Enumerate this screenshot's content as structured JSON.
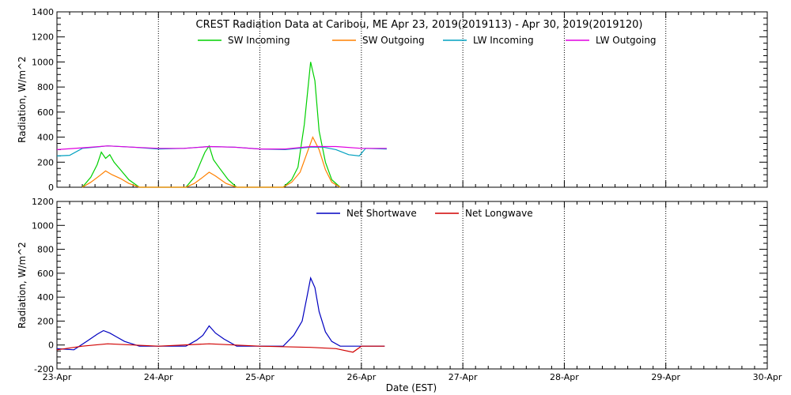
{
  "figure_title": "CREST Radiation Data at Caribou, ME   Apr 23, 2019(2019113) - Apr 30, 2019(2019120)",
  "xlabel": "Date (EST)",
  "chart_data": [
    {
      "type": "line",
      "ylabel": "Radiation, W/m^2",
      "ylim": [
        0,
        1400
      ],
      "yticks": [
        0,
        200,
        400,
        600,
        800,
        1000,
        1200,
        1400
      ],
      "xlim": [
        "2019-04-23",
        "2019-04-30"
      ],
      "xtick_labels": [
        "23-Apr",
        "24-Apr",
        "25-Apr",
        "26-Apr",
        "27-Apr",
        "28-Apr",
        "29-Apr",
        "30-Apr"
      ],
      "grid": true,
      "legend_position": "top",
      "series": [
        {
          "name": "SW Incoming",
          "color": "#00d000",
          "x": [
            "2019-04-23T06:00",
            "2019-04-23T08:00",
            "2019-04-23T09:30",
            "2019-04-23T10:30",
            "2019-04-23T11:30",
            "2019-04-23T12:30",
            "2019-04-23T13:30",
            "2019-04-23T15:00",
            "2019-04-23T17:00",
            "2019-04-23T19:30",
            "2019-04-24T06:30",
            "2019-04-24T08:30",
            "2019-04-24T10:00",
            "2019-04-24T11:00",
            "2019-04-24T12:00",
            "2019-04-24T13:00",
            "2019-04-24T14:30",
            "2019-04-24T16:30",
            "2019-04-24T18:30",
            "2019-04-25T05:30",
            "2019-04-25T07:30",
            "2019-04-25T09:00",
            "2019-04-25T10:30",
            "2019-04-25T12:00",
            "2019-04-25T13:00",
            "2019-04-25T14:00",
            "2019-04-25T15:30",
            "2019-04-25T17:00",
            "2019-04-25T19:00"
          ],
          "y": [
            0,
            80,
            180,
            280,
            230,
            260,
            200,
            140,
            60,
            0,
            0,
            80,
            200,
            280,
            330,
            220,
            150,
            60,
            0,
            0,
            60,
            160,
            500,
            1000,
            850,
            450,
            200,
            60,
            0
          ]
        },
        {
          "name": "SW Outgoing",
          "color": "#ff8000",
          "x": [
            "2019-04-23T06:00",
            "2019-04-23T08:00",
            "2019-04-23T10:00",
            "2019-04-23T11:30",
            "2019-04-23T13:00",
            "2019-04-23T15:00",
            "2019-04-23T17:00",
            "2019-04-23T19:30",
            "2019-04-24T06:30",
            "2019-04-24T08:30",
            "2019-04-24T10:30",
            "2019-04-24T12:00",
            "2019-04-24T13:30",
            "2019-04-24T16:00",
            "2019-04-24T18:30",
            "2019-04-25T05:30",
            "2019-04-25T07:30",
            "2019-04-25T09:30",
            "2019-04-25T11:00",
            "2019-04-25T12:30",
            "2019-04-25T14:00",
            "2019-04-25T15:30",
            "2019-04-25T17:00",
            "2019-04-25T19:00"
          ],
          "y": [
            0,
            40,
            90,
            130,
            100,
            70,
            30,
            0,
            0,
            30,
            80,
            120,
            90,
            30,
            0,
            0,
            40,
            120,
            260,
            400,
            300,
            140,
            40,
            0
          ]
        },
        {
          "name": "LW Incoming",
          "color": "#00a0c0",
          "x": [
            "2019-04-23T00:00",
            "2019-04-23T03:00",
            "2019-04-23T06:00",
            "2019-04-23T12:00",
            "2019-04-23T18:00",
            "2019-04-24T00:00",
            "2019-04-24T06:00",
            "2019-04-24T12:00",
            "2019-04-24T18:00",
            "2019-04-25T00:00",
            "2019-04-25T06:00",
            "2019-04-25T09:00",
            "2019-04-25T12:00",
            "2019-04-25T15:00",
            "2019-04-25T18:00",
            "2019-04-25T21:00",
            "2019-04-25T23:30",
            "2019-04-26T01:00",
            "2019-04-26T06:00"
          ],
          "y": [
            250,
            255,
            310,
            330,
            320,
            305,
            310,
            325,
            320,
            305,
            300,
            310,
            320,
            320,
            300,
            260,
            250,
            310,
            305
          ]
        },
        {
          "name": "LW Outgoing",
          "color": "#e000e0",
          "x": [
            "2019-04-23T00:00",
            "2019-04-23T06:00",
            "2019-04-23T12:00",
            "2019-04-23T18:00",
            "2019-04-24T00:00",
            "2019-04-24T06:00",
            "2019-04-24T12:00",
            "2019-04-24T18:00",
            "2019-04-25T00:00",
            "2019-04-25T06:00",
            "2019-04-25T12:00",
            "2019-04-25T18:00",
            "2019-04-26T00:00",
            "2019-04-26T06:00"
          ],
          "y": [
            300,
            315,
            330,
            320,
            310,
            310,
            325,
            320,
            305,
            305,
            325,
            325,
            310,
            310
          ]
        }
      ]
    },
    {
      "type": "line",
      "ylabel": "Radiation, W/m^2",
      "ylim": [
        -200,
        1200
      ],
      "yticks": [
        -200,
        0,
        200,
        400,
        600,
        800,
        1000,
        1200
      ],
      "xlim": [
        "2019-04-23",
        "2019-04-30"
      ],
      "xtick_labels": [
        "23-Apr",
        "24-Apr",
        "25-Apr",
        "26-Apr",
        "27-Apr",
        "28-Apr",
        "29-Apr",
        "30-Apr"
      ],
      "grid": true,
      "legend_position": "top",
      "series": [
        {
          "name": "Net Shortwave",
          "color": "#0000c0",
          "x": [
            "2019-04-23T00:00",
            "2019-04-23T04:00",
            "2019-04-23T07:00",
            "2019-04-23T09:30",
            "2019-04-23T11:00",
            "2019-04-23T12:30",
            "2019-04-23T14:00",
            "2019-04-23T16:00",
            "2019-04-23T19:30",
            "2019-04-24T06:30",
            "2019-04-24T09:00",
            "2019-04-24T10:30",
            "2019-04-24T12:00",
            "2019-04-24T13:30",
            "2019-04-24T15:30",
            "2019-04-24T18:30",
            "2019-04-25T05:30",
            "2019-04-25T08:00",
            "2019-04-25T10:00",
            "2019-04-25T11:00",
            "2019-04-25T12:00",
            "2019-04-25T13:00",
            "2019-04-25T14:00",
            "2019-04-25T15:30",
            "2019-04-25T17:00",
            "2019-04-25T19:00",
            "2019-04-26T00:00",
            "2019-04-26T05:30"
          ],
          "y": [
            -30,
            -40,
            30,
            90,
            120,
            100,
            70,
            30,
            -10,
            -10,
            40,
            80,
            160,
            100,
            50,
            -10,
            -10,
            80,
            200,
            380,
            560,
            480,
            280,
            110,
            30,
            -10,
            -10,
            -10
          ]
        },
        {
          "name": "Net Longwave",
          "color": "#d00000",
          "x": [
            "2019-04-23T00:00",
            "2019-04-23T06:00",
            "2019-04-23T12:00",
            "2019-04-23T18:00",
            "2019-04-24T00:00",
            "2019-04-24T12:00",
            "2019-04-24T18:00",
            "2019-04-25T00:00",
            "2019-04-25T12:00",
            "2019-04-25T18:00",
            "2019-04-25T22:00",
            "2019-04-26T00:00",
            "2019-04-26T05:30"
          ],
          "y": [
            -40,
            -10,
            10,
            0,
            -10,
            10,
            0,
            -10,
            -20,
            -30,
            -60,
            -10,
            -10
          ]
        }
      ]
    }
  ]
}
